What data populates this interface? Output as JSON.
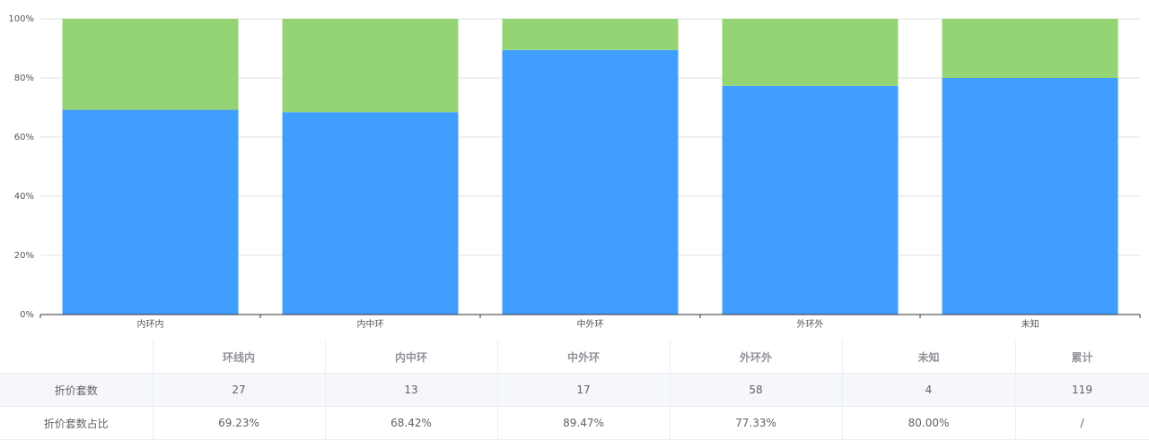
{
  "chart_data": {
    "type": "stacked-bar",
    "categories": [
      "内环内",
      "内中环",
      "中外环",
      "外环外",
      "未知"
    ],
    "series": [
      {
        "color": "#409eff",
        "values": [
          69.23,
          68.42,
          89.47,
          77.33,
          80.0
        ]
      },
      {
        "color": "#95d475",
        "values": [
          30.77,
          31.58,
          10.53,
          22.67,
          20.0
        ]
      }
    ],
    "ylim": [
      0,
      100
    ],
    "yticks": [
      {
        "value": 0,
        "label": "0%"
      },
      {
        "value": 20,
        "label": "20%"
      },
      {
        "value": 40,
        "label": "40%"
      },
      {
        "value": 60,
        "label": "60%"
      },
      {
        "value": 80,
        "label": "80%"
      },
      {
        "value": 100,
        "label": "100%"
      }
    ],
    "grid": true
  },
  "table": {
    "header": [
      "环线内",
      "内中环",
      "中外环",
      "外环外",
      "未知",
      "累计"
    ],
    "rows": [
      {
        "label": "折价套数",
        "cells": [
          "27",
          "13",
          "17",
          "58",
          "4",
          "119"
        ]
      },
      {
        "label": "折价套数占比",
        "cells": [
          "69.23%",
          "68.42%",
          "89.47%",
          "77.33%",
          "80.00%",
          "/"
        ]
      }
    ]
  }
}
